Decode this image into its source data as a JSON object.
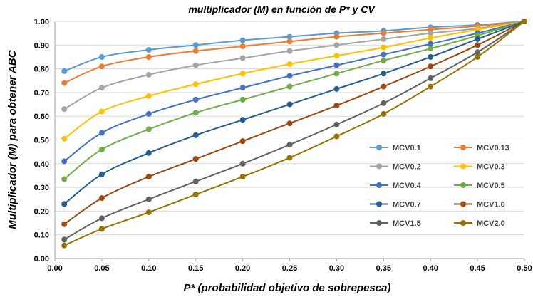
{
  "chart_data": {
    "type": "line",
    "title": "multiplicador (M) en función de P* y CV",
    "xlabel": "P* (probabilidad objetivo de sobrepesca)",
    "ylabel": "Multiplicador (M) para obtener ABC",
    "xlim": [
      0,
      0.5
    ],
    "ylim": [
      0,
      1
    ],
    "xticks": [
      "0.00",
      "0.05",
      "0.10",
      "0.15",
      "0.20",
      "0.25",
      "0.30",
      "0.35",
      "0.40",
      "0.45",
      "0.50"
    ],
    "yticks": [
      "0.00",
      "0.10",
      "0.20",
      "0.30",
      "0.40",
      "0.50",
      "0.60",
      "0.70",
      "0.80",
      "0.90",
      "1.00"
    ],
    "grid": "horizontal",
    "legend_position": "lower-right",
    "x": [
      0.01,
      0.05,
      0.1,
      0.15,
      0.2,
      0.25,
      0.3,
      0.35,
      0.4,
      0.45,
      0.5
    ],
    "series": [
      {
        "name": "MCV0.1",
        "color": "#5b9bd5",
        "values": [
          0.79,
          0.85,
          0.88,
          0.9,
          0.92,
          0.935,
          0.95,
          0.96,
          0.975,
          0.985,
          1.0
        ]
      },
      {
        "name": "MCV0.13",
        "color": "#ed7d31",
        "values": [
          0.74,
          0.81,
          0.85,
          0.875,
          0.895,
          0.915,
          0.935,
          0.95,
          0.965,
          0.98,
          1.0
        ]
      },
      {
        "name": "MCV0.2",
        "color": "#a5a5a5",
        "values": [
          0.63,
          0.72,
          0.775,
          0.815,
          0.845,
          0.875,
          0.9,
          0.925,
          0.95,
          0.97,
          1.0
        ]
      },
      {
        "name": "MCV0.3",
        "color": "#ffc000",
        "values": [
          0.505,
          0.62,
          0.685,
          0.735,
          0.78,
          0.82,
          0.855,
          0.89,
          0.93,
          0.965,
          1.0
        ]
      },
      {
        "name": "MCV0.4",
        "color": "#4472c4",
        "values": [
          0.41,
          0.53,
          0.61,
          0.67,
          0.72,
          0.77,
          0.815,
          0.86,
          0.905,
          0.95,
          1.0
        ]
      },
      {
        "name": "MCV0.5",
        "color": "#70ad47",
        "values": [
          0.335,
          0.46,
          0.545,
          0.615,
          0.67,
          0.725,
          0.78,
          0.835,
          0.885,
          0.94,
          1.0
        ]
      },
      {
        "name": "MCV0.7",
        "color": "#255e91",
        "values": [
          0.23,
          0.355,
          0.445,
          0.52,
          0.585,
          0.65,
          0.715,
          0.78,
          0.85,
          0.925,
          1.0
        ]
      },
      {
        "name": "MCV1.0",
        "color": "#9e480e",
        "values": [
          0.145,
          0.255,
          0.345,
          0.42,
          0.495,
          0.57,
          0.645,
          0.725,
          0.81,
          0.9,
          1.0
        ]
      },
      {
        "name": "MCV1.5",
        "color": "#636363",
        "values": [
          0.08,
          0.17,
          0.25,
          0.325,
          0.4,
          0.48,
          0.565,
          0.655,
          0.76,
          0.87,
          1.0
        ]
      },
      {
        "name": "MCV2.0",
        "color": "#997300",
        "values": [
          0.055,
          0.125,
          0.195,
          0.27,
          0.345,
          0.425,
          0.515,
          0.61,
          0.725,
          0.85,
          1.0
        ]
      }
    ]
  }
}
